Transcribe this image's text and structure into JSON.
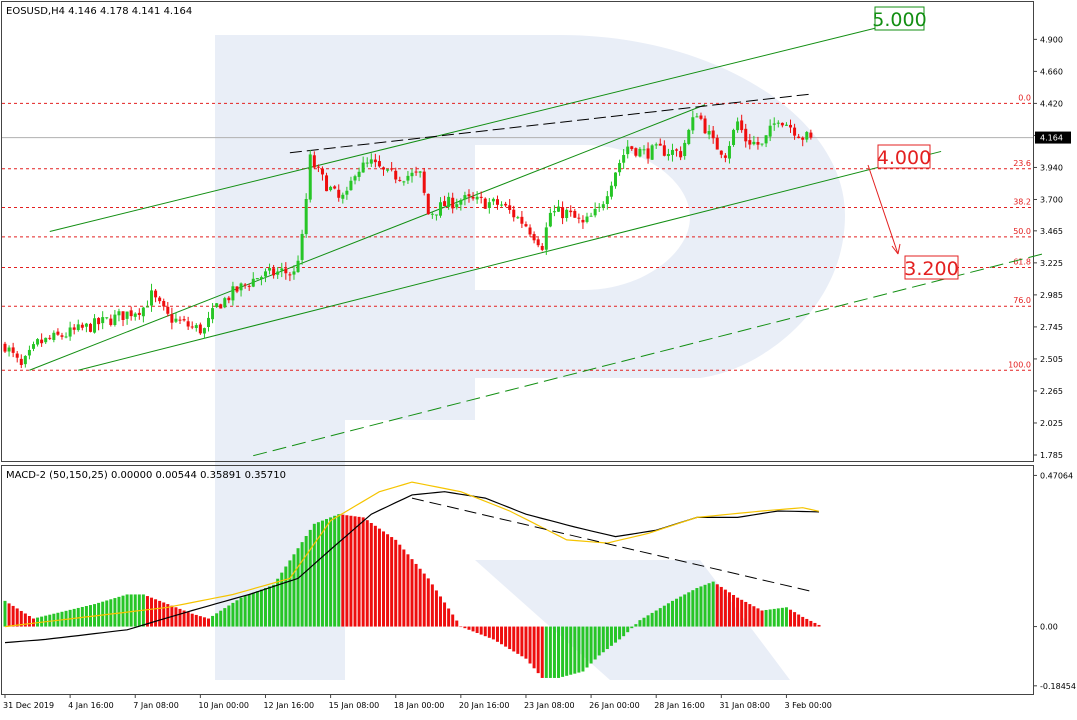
{
  "header": {
    "instrument_info": "EOSUSD,H4  4.146 4.178 4.141 4.164",
    "indicator_info": "MACD-2 (50,150,25) 0.00000 0.00544 0.35891 0.35710"
  },
  "colors": {
    "bull": "#27c527",
    "bear": "#ee0e0e",
    "channel": "#138f13",
    "fib_level": "#e32020",
    "signal": "#f5c400",
    "macd_line": "#000000",
    "watermark": "#e9eef7",
    "price_tag_bg": "#000000",
    "target_up": "#138f13",
    "target_down": "#e32020"
  },
  "chart_data": [
    {
      "type": "candlestick",
      "title": "EOSUSD,H4  4.146 4.178 4.141 4.164",
      "ylim": [
        1.74,
        5.18
      ],
      "y_ticks": [
        "4.900",
        "4.660",
        "4.420",
        "4.180",
        "3.940",
        "3.700",
        "3.465",
        "3.225",
        "2.985",
        "2.745",
        "2.505",
        "2.265",
        "2.025",
        "1.785"
      ],
      "y_tick_values": [
        4.9,
        4.66,
        4.42,
        4.18,
        3.94,
        3.7,
        3.465,
        3.225,
        2.985,
        2.745,
        2.505,
        2.265,
        2.025,
        1.785
      ],
      "x_ticks": [
        "31 Dec 2019",
        "4 Jan 16:00",
        "7 Jan 08:00",
        "10 Jan 00:00",
        "12 Jan 16:00",
        "15 Jan 08:00",
        "18 Jan 00:00",
        "20 Jan 16:00",
        "23 Jan 08:00",
        "26 Jan 00:00",
        "28 Jan 16:00",
        "31 Jan 08:00",
        "3 Feb 00:00"
      ],
      "x_tick_bars": [
        0,
        16,
        32,
        48,
        64,
        80,
        96,
        112,
        128,
        144,
        160,
        176,
        192
      ],
      "last_price": "4.164",
      "last_price_value": 4.164,
      "price_path": [
        [
          0,
          2.61
        ],
        [
          4,
          2.44
        ],
        [
          8,
          2.62
        ],
        [
          16,
          2.7
        ],
        [
          24,
          2.78
        ],
        [
          34,
          2.89
        ],
        [
          36,
          2.98
        ],
        [
          40,
          2.82
        ],
        [
          46,
          2.74
        ],
        [
          49,
          2.72
        ],
        [
          52,
          2.9
        ],
        [
          56,
          3.0
        ],
        [
          62,
          3.12
        ],
        [
          68,
          3.16
        ],
        [
          71,
          3.14
        ],
        [
          73,
          3.4
        ],
        [
          75,
          4.0
        ],
        [
          78,
          3.85
        ],
        [
          82,
          3.7
        ],
        [
          84,
          3.72
        ],
        [
          86,
          3.92
        ],
        [
          90,
          3.97
        ],
        [
          94,
          3.88
        ],
        [
          102,
          3.88
        ],
        [
          104,
          3.59
        ],
        [
          108,
          3.66
        ],
        [
          112,
          3.7
        ],
        [
          122,
          3.66
        ],
        [
          128,
          3.51
        ],
        [
          132,
          3.36
        ],
        [
          134,
          3.6
        ],
        [
          138,
          3.6
        ],
        [
          142,
          3.51
        ],
        [
          146,
          3.62
        ],
        [
          150,
          3.92
        ],
        [
          153,
          4.1
        ],
        [
          157,
          4.05
        ],
        [
          161,
          4.07
        ],
        [
          166,
          4.05
        ],
        [
          170,
          4.36
        ],
        [
          174,
          4.12
        ],
        [
          177,
          4.05
        ],
        [
          180,
          4.28
        ],
        [
          182,
          4.15
        ],
        [
          186,
          4.1
        ],
        [
          190,
          4.32
        ],
        [
          193,
          4.25
        ],
        [
          196,
          4.17
        ],
        [
          198,
          4.164
        ]
      ],
      "fibonacci_levels": [
        {
          "label": "0.0",
          "price": 4.42
        },
        {
          "label": "23.6",
          "price": 3.93
        },
        {
          "label": "38.2",
          "price": 3.64
        },
        {
          "label": "50.0",
          "price": 3.42
        },
        {
          "label": "61.8",
          "price": 3.19
        },
        {
          "label": "76.0",
          "price": 2.9
        },
        {
          "label": "100.0",
          "price": 2.42
        }
      ],
      "annotations": [
        {
          "label": "5.000",
          "price": 5.0,
          "kind": "target-up"
        },
        {
          "label": "4.000",
          "price": 4.0,
          "kind": "target-mid"
        },
        {
          "label": "3.200",
          "price": 3.2,
          "kind": "target-down"
        }
      ],
      "trend_lines": [
        {
          "kind": "solid",
          "from": [
            11,
            3.46
          ],
          "to": [
            216,
            5.0
          ]
        },
        {
          "kind": "solid",
          "from": [
            6,
            2.42
          ],
          "to": [
            172,
            4.41
          ]
        },
        {
          "kind": "solid",
          "from": [
            18,
            2.42
          ],
          "to": [
            230,
            4.06
          ]
        },
        {
          "kind": "dashed",
          "from": [
            61,
            1.78
          ],
          "to": [
            256,
            3.3
          ]
        },
        {
          "kind": "dashed-black",
          "from": [
            70,
            4.05
          ],
          "to": [
            198,
            4.49
          ]
        }
      ]
    },
    {
      "type": "bar",
      "title": "MACD-2 (50,150,25) 0.00000 0.00544 0.35891 0.35710",
      "ylim": [
        -0.21,
        0.5
      ],
      "y_ticks": [
        "0.47064",
        "0.00",
        "-0.18454"
      ],
      "y_tick_values": [
        0.47064,
        0.0,
        -0.18454
      ],
      "histogram_path": [
        [
          0,
          0.08
        ],
        [
          7,
          0.025
        ],
        [
          22,
          0.07
        ],
        [
          30,
          0.1
        ],
        [
          34,
          0.1
        ],
        [
          46,
          0.04
        ],
        [
          50,
          0.025
        ],
        [
          58,
          0.09
        ],
        [
          66,
          0.13
        ],
        [
          76,
          0.32
        ],
        [
          82,
          0.35
        ],
        [
          88,
          0.34
        ],
        [
          96,
          0.27
        ],
        [
          104,
          0.15
        ],
        [
          112,
          0.0
        ],
        [
          120,
          -0.04
        ],
        [
          128,
          -0.1
        ],
        [
          132,
          -0.16
        ],
        [
          136,
          -0.16
        ],
        [
          142,
          -0.14
        ],
        [
          146,
          -0.09
        ],
        [
          152,
          -0.03
        ],
        [
          156,
          0.02
        ],
        [
          164,
          0.08
        ],
        [
          170,
          0.12
        ],
        [
          174,
          0.14
        ],
        [
          180,
          0.09
        ],
        [
          186,
          0.05
        ],
        [
          192,
          0.06
        ],
        [
          196,
          0.03
        ],
        [
          200,
          0.005
        ]
      ],
      "macd_line_path": [
        [
          0,
          -0.05
        ],
        [
          10,
          -0.04
        ],
        [
          30,
          -0.01
        ],
        [
          46,
          0.05
        ],
        [
          60,
          0.1
        ],
        [
          72,
          0.15
        ],
        [
          80,
          0.24
        ],
        [
          90,
          0.35
        ],
        [
          100,
          0.41
        ],
        [
          108,
          0.42
        ],
        [
          118,
          0.4
        ],
        [
          128,
          0.35
        ],
        [
          140,
          0.31
        ],
        [
          150,
          0.28
        ],
        [
          160,
          0.3
        ],
        [
          170,
          0.34
        ],
        [
          180,
          0.34
        ],
        [
          190,
          0.36
        ],
        [
          200,
          0.357
        ]
      ],
      "signal_line_path": [
        [
          0,
          0.0
        ],
        [
          20,
          0.03
        ],
        [
          40,
          0.06
        ],
        [
          56,
          0.1
        ],
        [
          70,
          0.15
        ],
        [
          80,
          0.33
        ],
        [
          92,
          0.42
        ],
        [
          100,
          0.45
        ],
        [
          112,
          0.42
        ],
        [
          124,
          0.36
        ],
        [
          138,
          0.27
        ],
        [
          148,
          0.26
        ],
        [
          158,
          0.29
        ],
        [
          170,
          0.34
        ],
        [
          186,
          0.36
        ],
        [
          196,
          0.37
        ],
        [
          200,
          0.359
        ]
      ],
      "trend_line": {
        "kind": "dashed-black",
        "from": [
          100,
          0.4
        ],
        "to": [
          198,
          0.11
        ]
      }
    }
  ]
}
